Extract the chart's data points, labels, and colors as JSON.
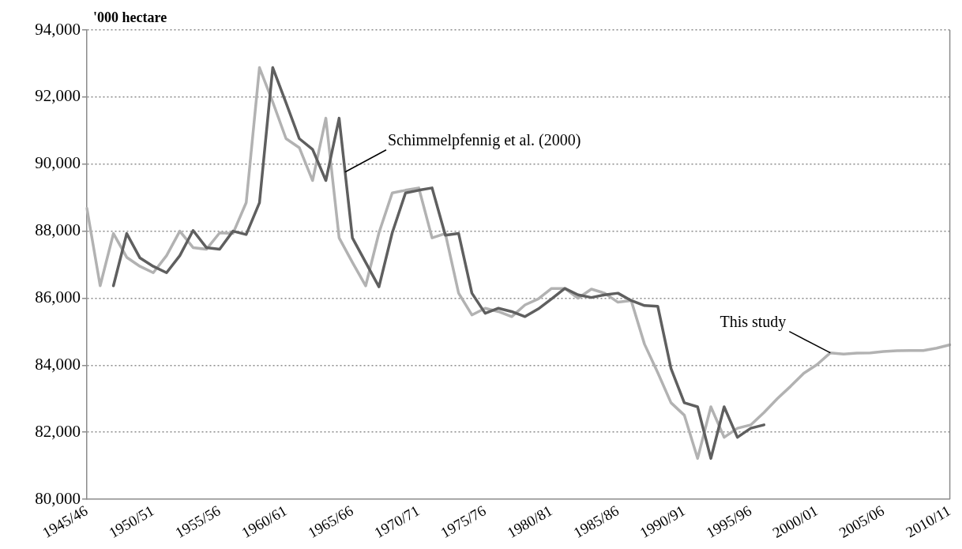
{
  "chart_data": {
    "type": "line",
    "ylabel": "'000 hectare",
    "categories": [
      "1945/46",
      null,
      null,
      null,
      null,
      "1950/51",
      null,
      null,
      null,
      null,
      "1955/56",
      null,
      null,
      null,
      null,
      "1960/61",
      null,
      null,
      null,
      null,
      "1965/66",
      null,
      null,
      null,
      null,
      "1970/71",
      null,
      null,
      null,
      null,
      "1975/76",
      null,
      null,
      null,
      null,
      "1980/81",
      null,
      null,
      null,
      null,
      "1985/86",
      null,
      null,
      null,
      null,
      "1990/91",
      null,
      null,
      null,
      null,
      "1995/96",
      null,
      null,
      null,
      null,
      "2000/01",
      null,
      null,
      null,
      null,
      "2005/06",
      null,
      null,
      null,
      null,
      "2010/11"
    ],
    "series": [
      {
        "name": "Schimmelpfennig et al. (2000)",
        "color": "#5f5f5f",
        "values": [
          null,
          null,
          86370,
          87930,
          87200,
          86950,
          86760,
          87270,
          88020,
          87510,
          87460,
          88000,
          87900,
          88850,
          92880,
          91830,
          90760,
          90440,
          89510,
          91370,
          87800,
          87070,
          86340,
          87950,
          89140,
          89220,
          89290,
          87880,
          87930,
          86150,
          85550,
          85700,
          85600,
          85450,
          85680,
          85980,
          86290,
          86100,
          86020,
          86100,
          86150,
          85930,
          85780,
          85760,
          83900,
          82880,
          82760,
          81220,
          82760,
          81850,
          82120,
          82220,
          null,
          null,
          null,
          null,
          null,
          null,
          null,
          null,
          null,
          null,
          null,
          null,
          null,
          null
        ]
      },
      {
        "name": "This study",
        "color": "#b2b2b2",
        "values": [
          88680,
          86370,
          87930,
          87220,
          86950,
          86760,
          87270,
          88000,
          87510,
          87460,
          87950,
          87930,
          88850,
          92880,
          91850,
          90760,
          90490,
          89510,
          91370,
          87800,
          87070,
          86370,
          87950,
          89140,
          89220,
          89290,
          87800,
          87930,
          86150,
          85500,
          85700,
          85600,
          85450,
          85800,
          85980,
          86290,
          86290,
          86000,
          86270,
          86150,
          85880,
          85930,
          84630,
          83780,
          82880,
          82510,
          81220,
          82760,
          81850,
          82120,
          82220,
          82590,
          83000,
          83370,
          83760,
          84020,
          84370,
          84330,
          84360,
          84370,
          84410,
          84430,
          84440,
          84440,
          84510,
          84610
        ]
      }
    ],
    "ylim": [
      80000,
      94000
    ],
    "yticks": [
      {
        "value": 80000,
        "label": "80,000"
      },
      {
        "value": 82000,
        "label": "82,000"
      },
      {
        "value": 84000,
        "label": "84,000"
      },
      {
        "value": 86000,
        "label": "86,000"
      },
      {
        "value": 88000,
        "label": "88,000"
      },
      {
        "value": 90000,
        "label": "90,000"
      },
      {
        "value": 92000,
        "label": "92,000"
      },
      {
        "value": 94000,
        "label": "94,000"
      }
    ],
    "grid": "y",
    "line_style": "solid",
    "marker": "none",
    "legend": false
  }
}
